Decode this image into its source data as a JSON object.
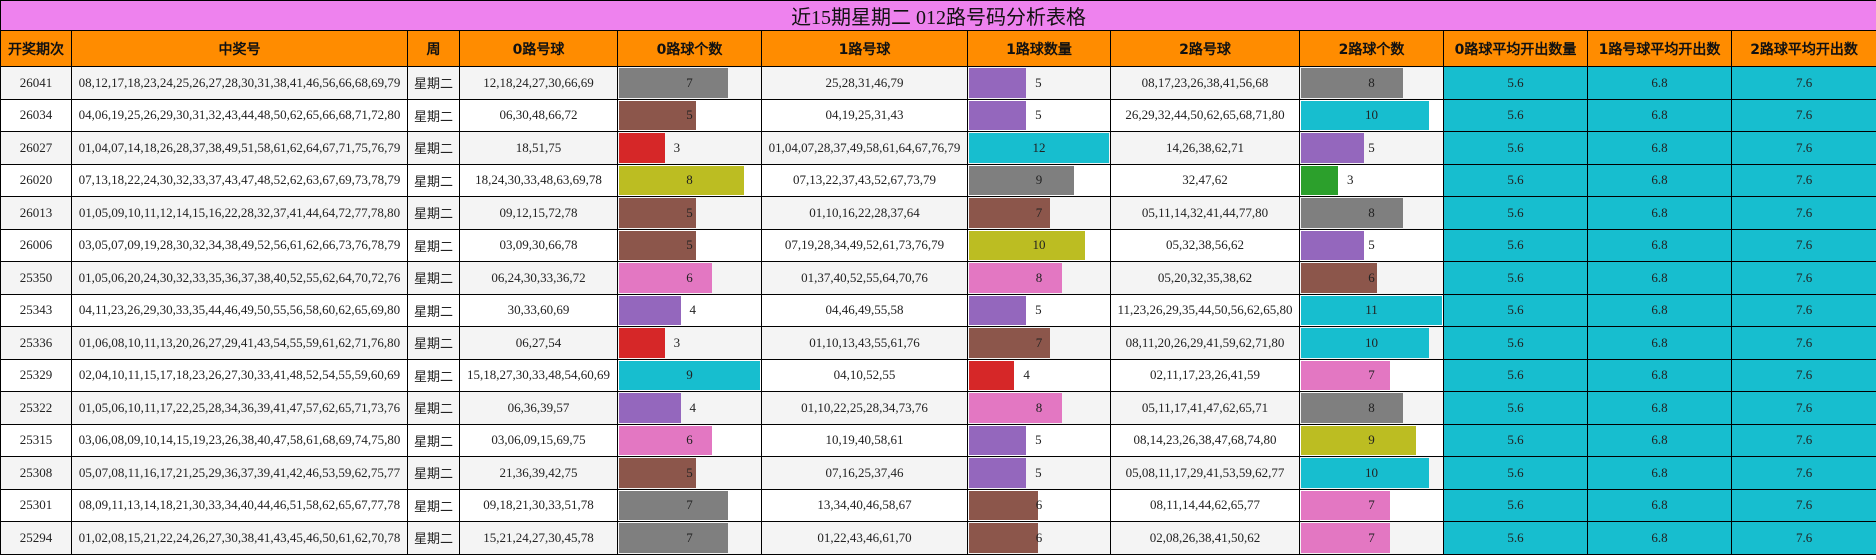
{
  "title": "近15期星期二 012路号码分析表格",
  "headers": [
    "开奖期次",
    "中奖号",
    "周",
    "0路号球",
    "0路球个数",
    "1路号球",
    "1路球数量",
    "2路号球",
    "2路球个数",
    "0路球平均开出数量",
    "1路号球平均开出数",
    "2路球平均开出数"
  ],
  "bar_max": {
    "r0": 9,
    "r1": 12,
    "r2": 11
  },
  "averages": {
    "r0": "5.6",
    "r1": "6.8",
    "r2": "7.6"
  },
  "colors": {
    "title_bg": "#ee82ee",
    "header_bg": "#ff8c00",
    "avg_bg": "#17becf",
    "odd_row": "#f4f4f4",
    "even_row": "#ffffff"
  },
  "count_colors": {
    "3": "#d62728",
    "4": "#9467bd",
    "5": "#8c564b",
    "6": "#e377c2",
    "7": "#7f7f7f",
    "8": "#bcbd22",
    "9": "#17becf",
    "10": "#17becf",
    "11": "#17becf",
    "12": "#17becf"
  },
  "rows": [
    {
      "issue": "26041",
      "numbers": "08,12,17,18,23,24,25,26,27,28,30,31,38,41,46,56,66,68,69,79",
      "week": "星期二",
      "r0": "12,18,24,27,30,66,69",
      "c0": 7,
      "c0_color": "#7f7f7f",
      "r1": "25,28,31,46,79",
      "c1": 5,
      "c1_color": "#9467bd",
      "r2": "08,17,23,26,38,41,56,68",
      "c2": 8,
      "c2_color": "#7f7f7f"
    },
    {
      "issue": "26034",
      "numbers": "04,06,19,25,26,29,30,31,32,43,44,48,50,62,65,66,68,71,72,80",
      "week": "星期二",
      "r0": "06,30,48,66,72",
      "c0": 5,
      "c0_color": "#8c564b",
      "r1": "04,19,25,31,43",
      "c1": 5,
      "c1_color": "#9467bd",
      "r2": "26,29,32,44,50,62,65,68,71,80",
      "c2": 10,
      "c2_color": "#17becf"
    },
    {
      "issue": "26027",
      "numbers": "01,04,07,14,18,26,28,37,38,49,51,58,61,62,64,67,71,75,76,79",
      "week": "星期二",
      "r0": "18,51,75",
      "c0": 3,
      "c0_color": "#d62728",
      "r1": "01,04,07,28,37,49,58,61,64,67,76,79",
      "c1": 12,
      "c1_color": "#17becf",
      "r2": "14,26,38,62,71",
      "c2": 5,
      "c2_color": "#9467bd"
    },
    {
      "issue": "26020",
      "numbers": "07,13,18,22,24,30,32,33,37,43,47,48,52,62,63,67,69,73,78,79",
      "week": "星期二",
      "r0": "18,24,30,33,48,63,69,78",
      "c0": 8,
      "c0_color": "#bcbd22",
      "r1": "07,13,22,37,43,52,67,73,79",
      "c1": 9,
      "c1_color": "#7f7f7f",
      "r2": "32,47,62",
      "c2": 3,
      "c2_color": "#2ca02c"
    },
    {
      "issue": "26013",
      "numbers": "01,05,09,10,11,12,14,15,16,22,28,32,37,41,44,64,72,77,78,80",
      "week": "星期二",
      "r0": "09,12,15,72,78",
      "c0": 5,
      "c0_color": "#8c564b",
      "r1": "01,10,16,22,28,37,64",
      "c1": 7,
      "c1_color": "#8c564b",
      "r2": "05,11,14,32,41,44,77,80",
      "c2": 8,
      "c2_color": "#7f7f7f"
    },
    {
      "issue": "26006",
      "numbers": "03,05,07,09,19,28,30,32,34,38,49,52,56,61,62,66,73,76,78,79",
      "week": "星期二",
      "r0": "03,09,30,66,78",
      "c0": 5,
      "c0_color": "#8c564b",
      "r1": "07,19,28,34,49,52,61,73,76,79",
      "c1": 10,
      "c1_color": "#bcbd22",
      "r2": "05,32,38,56,62",
      "c2": 5,
      "c2_color": "#9467bd"
    },
    {
      "issue": "25350",
      "numbers": "01,05,06,20,24,30,32,33,35,36,37,38,40,52,55,62,64,70,72,76",
      "week": "星期二",
      "r0": "06,24,30,33,36,72",
      "c0": 6,
      "c0_color": "#e377c2",
      "r1": "01,37,40,52,55,64,70,76",
      "c1": 8,
      "c1_color": "#e377c2",
      "r2": "05,20,32,35,38,62",
      "c2": 6,
      "c2_color": "#8c564b"
    },
    {
      "issue": "25343",
      "numbers": "04,11,23,26,29,30,33,35,44,46,49,50,55,56,58,60,62,65,69,80",
      "week": "星期二",
      "r0": "30,33,60,69",
      "c0": 4,
      "c0_color": "#9467bd",
      "r1": "04,46,49,55,58",
      "c1": 5,
      "c1_color": "#9467bd",
      "r2": "11,23,26,29,35,44,50,56,62,65,80",
      "c2": 11,
      "c2_color": "#17becf"
    },
    {
      "issue": "25336",
      "numbers": "01,06,08,10,11,13,20,26,27,29,41,43,54,55,59,61,62,71,76,80",
      "week": "星期二",
      "r0": "06,27,54",
      "c0": 3,
      "c0_color": "#d62728",
      "r1": "01,10,13,43,55,61,76",
      "c1": 7,
      "c1_color": "#8c564b",
      "r2": "08,11,20,26,29,41,59,62,71,80",
      "c2": 10,
      "c2_color": "#17becf"
    },
    {
      "issue": "25329",
      "numbers": "02,04,10,11,15,17,18,23,26,27,30,33,41,48,52,54,55,59,60,69",
      "week": "星期二",
      "r0": "15,18,27,30,33,48,54,60,69",
      "c0": 9,
      "c0_color": "#17becf",
      "r1": "04,10,52,55",
      "c1": 4,
      "c1_color": "#d62728",
      "r2": "02,11,17,23,26,41,59",
      "c2": 7,
      "c2_color": "#e377c2"
    },
    {
      "issue": "25322",
      "numbers": "01,05,06,10,11,17,22,25,28,34,36,39,41,47,57,62,65,71,73,76",
      "week": "星期二",
      "r0": "06,36,39,57",
      "c0": 4,
      "c0_color": "#9467bd",
      "r1": "01,10,22,25,28,34,73,76",
      "c1": 8,
      "c1_color": "#e377c2",
      "r2": "05,11,17,41,47,62,65,71",
      "c2": 8,
      "c2_color": "#7f7f7f"
    },
    {
      "issue": "25315",
      "numbers": "03,06,08,09,10,14,15,19,23,26,38,40,47,58,61,68,69,74,75,80",
      "week": "星期二",
      "r0": "03,06,09,15,69,75",
      "c0": 6,
      "c0_color": "#e377c2",
      "r1": "10,19,40,58,61",
      "c1": 5,
      "c1_color": "#9467bd",
      "r2": "08,14,23,26,38,47,68,74,80",
      "c2": 9,
      "c2_color": "#bcbd22"
    },
    {
      "issue": "25308",
      "numbers": "05,07,08,11,16,17,21,25,29,36,37,39,41,42,46,53,59,62,75,77",
      "week": "星期二",
      "r0": "21,36,39,42,75",
      "c0": 5,
      "c0_color": "#8c564b",
      "r1": "07,16,25,37,46",
      "c1": 5,
      "c1_color": "#9467bd",
      "r2": "05,08,11,17,29,41,53,59,62,77",
      "c2": 10,
      "c2_color": "#17becf"
    },
    {
      "issue": "25301",
      "numbers": "08,09,11,13,14,18,21,30,33,34,40,44,46,51,58,62,65,67,77,78",
      "week": "星期二",
      "r0": "09,18,21,30,33,51,78",
      "c0": 7,
      "c0_color": "#7f7f7f",
      "r1": "13,34,40,46,58,67",
      "c1": 6,
      "c1_color": "#8c564b",
      "r2": "08,11,14,44,62,65,77",
      "c2": 7,
      "c2_color": "#e377c2"
    },
    {
      "issue": "25294",
      "numbers": "01,02,08,15,21,22,24,26,27,30,38,41,43,45,46,50,61,62,70,78",
      "week": "星期二",
      "r0": "15,21,24,27,30,45,78",
      "c0": 7,
      "c0_color": "#7f7f7f",
      "r1": "01,22,43,46,61,70",
      "c1": 6,
      "c1_color": "#8c564b",
      "r2": "02,08,26,38,41,50,62",
      "c2": 7,
      "c2_color": "#e377c2"
    }
  ]
}
